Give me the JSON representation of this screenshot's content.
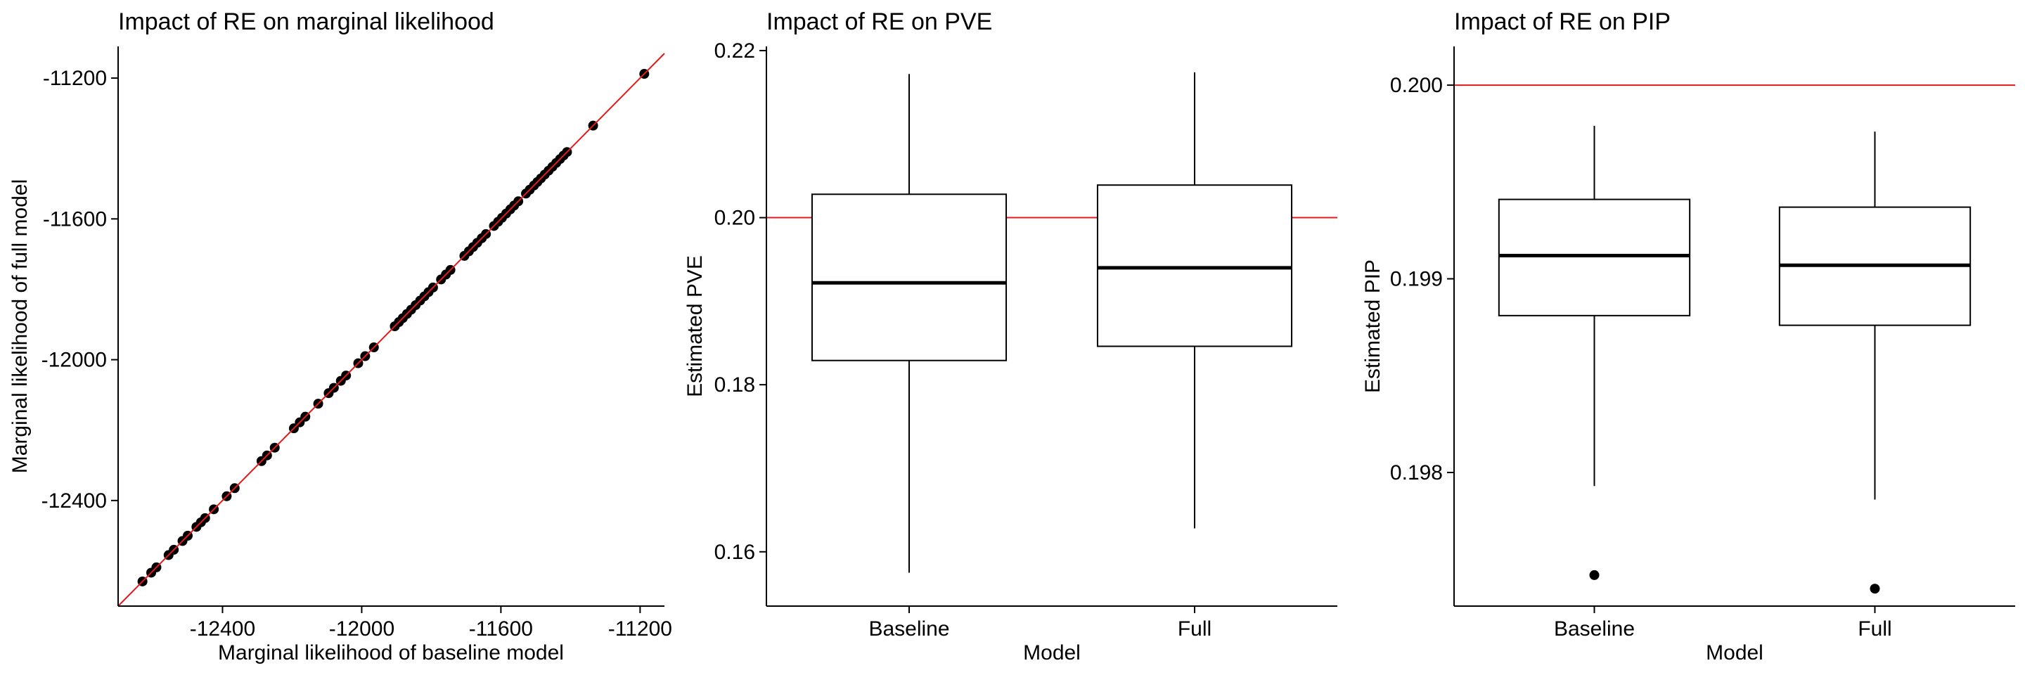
{
  "chart_data": [
    {
      "type": "scatter",
      "title": "Impact of RE on marginal likelihood",
      "xlabel": "Marginal likelihood of baseline model",
      "ylabel": "Marginal likelihood of full model",
      "xlim": [
        -12700,
        -11130
      ],
      "ylim": [
        -12700,
        -11110
      ],
      "xticks": [
        -12400,
        -12000,
        -11600,
        -11200
      ],
      "yticks": [
        -12400,
        -12000,
        -11600,
        -11200
      ],
      "xtick_labels": [
        "-12400",
        "-12000",
        "-11600",
        "-11200"
      ],
      "ytick_labels": [
        "-12400",
        "-12000",
        "-11600",
        "-11200"
      ],
      "reference_line": {
        "type": "y=x",
        "color": "#e41a1c"
      },
      "grid": false,
      "point_color": "#000000",
      "points": [
        [
          -12630,
          -12630
        ],
        [
          -12605,
          -12605
        ],
        [
          -12590,
          -12590
        ],
        [
          -12555,
          -12555
        ],
        [
          -12540,
          -12540
        ],
        [
          -12515,
          -12515
        ],
        [
          -12500,
          -12500
        ],
        [
          -12475,
          -12475
        ],
        [
          -12462,
          -12462
        ],
        [
          -12450,
          -12450
        ],
        [
          -12425,
          -12425
        ],
        [
          -12388,
          -12388
        ],
        [
          -12365,
          -12365
        ],
        [
          -12288,
          -12288
        ],
        [
          -12272,
          -12272
        ],
        [
          -12250,
          -12250
        ],
        [
          -12195,
          -12195
        ],
        [
          -12178,
          -12178
        ],
        [
          -12162,
          -12162
        ],
        [
          -12125,
          -12125
        ],
        [
          -12095,
          -12095
        ],
        [
          -12080,
          -12080
        ],
        [
          -12060,
          -12060
        ],
        [
          -12045,
          -12045
        ],
        [
          -12010,
          -12010
        ],
        [
          -11990,
          -11990
        ],
        [
          -11965,
          -11965
        ],
        [
          -11905,
          -11905
        ],
        [
          -11893,
          -11893
        ],
        [
          -11882,
          -11882
        ],
        [
          -11870,
          -11870
        ],
        [
          -11858,
          -11858
        ],
        [
          -11845,
          -11845
        ],
        [
          -11832,
          -11832
        ],
        [
          -11820,
          -11820
        ],
        [
          -11808,
          -11808
        ],
        [
          -11795,
          -11795
        ],
        [
          -11772,
          -11772
        ],
        [
          -11758,
          -11758
        ],
        [
          -11745,
          -11745
        ],
        [
          -11705,
          -11705
        ],
        [
          -11692,
          -11692
        ],
        [
          -11680,
          -11680
        ],
        [
          -11668,
          -11668
        ],
        [
          -11655,
          -11655
        ],
        [
          -11643,
          -11643
        ],
        [
          -11620,
          -11620
        ],
        [
          -11608,
          -11608
        ],
        [
          -11597,
          -11597
        ],
        [
          -11585,
          -11585
        ],
        [
          -11573,
          -11573
        ],
        [
          -11562,
          -11562
        ],
        [
          -11550,
          -11550
        ],
        [
          -11528,
          -11528
        ],
        [
          -11517,
          -11517
        ],
        [
          -11505,
          -11505
        ],
        [
          -11495,
          -11495
        ],
        [
          -11485,
          -11485
        ],
        [
          -11474,
          -11474
        ],
        [
          -11463,
          -11463
        ],
        [
          -11452,
          -11452
        ],
        [
          -11441,
          -11441
        ],
        [
          -11430,
          -11430
        ],
        [
          -11420,
          -11420
        ],
        [
          -11410,
          -11410
        ],
        [
          -11335,
          -11335
        ],
        [
          -11188,
          -11188
        ]
      ]
    },
    {
      "type": "box",
      "title": "Impact of RE on PVE",
      "xlabel": "Model",
      "ylabel": "Estimated PVE",
      "categories": [
        "Baseline",
        "Full"
      ],
      "ylim": [
        0.1535,
        0.2205
      ],
      "yticks": [
        0.16,
        0.18,
        0.2,
        0.22
      ],
      "ytick_labels": [
        "0.16",
        "0.18",
        "0.20",
        "0.22"
      ],
      "reference_line": {
        "type": "hline",
        "y": 0.2,
        "color": "#e41a1c"
      },
      "grid": false,
      "boxes": [
        {
          "category": "Baseline",
          "lower_whisker": 0.1575,
          "q1": 0.1829,
          "median": 0.1922,
          "q3": 0.2028,
          "upper_whisker": 0.2172,
          "outliers": []
        },
        {
          "category": "Full",
          "lower_whisker": 0.1628,
          "q1": 0.1846,
          "median": 0.194,
          "q3": 0.2039,
          "upper_whisker": 0.2174,
          "outliers": []
        }
      ]
    },
    {
      "type": "box",
      "title": "Impact of RE on PIP",
      "xlabel": "Model",
      "ylabel": "Estimated PIP",
      "categories": [
        "Baseline",
        "Full"
      ],
      "ylim": [
        0.19731,
        0.2002
      ],
      "yticks": [
        0.198,
        0.199,
        0.2
      ],
      "ytick_labels": [
        "0.198",
        "0.199",
        "0.200"
      ],
      "reference_line": {
        "type": "hline",
        "y": 0.2,
        "color": "#e41a1c"
      },
      "grid": false,
      "boxes": [
        {
          "category": "Baseline",
          "lower_whisker": 0.19793,
          "q1": 0.19881,
          "median": 0.19912,
          "q3": 0.19941,
          "upper_whisker": 0.19979,
          "outliers": [
            0.19747
          ]
        },
        {
          "category": "Full",
          "lower_whisker": 0.19786,
          "q1": 0.19876,
          "median": 0.19907,
          "q3": 0.19937,
          "upper_whisker": 0.19976,
          "outliers": [
            0.1974
          ]
        }
      ]
    }
  ]
}
